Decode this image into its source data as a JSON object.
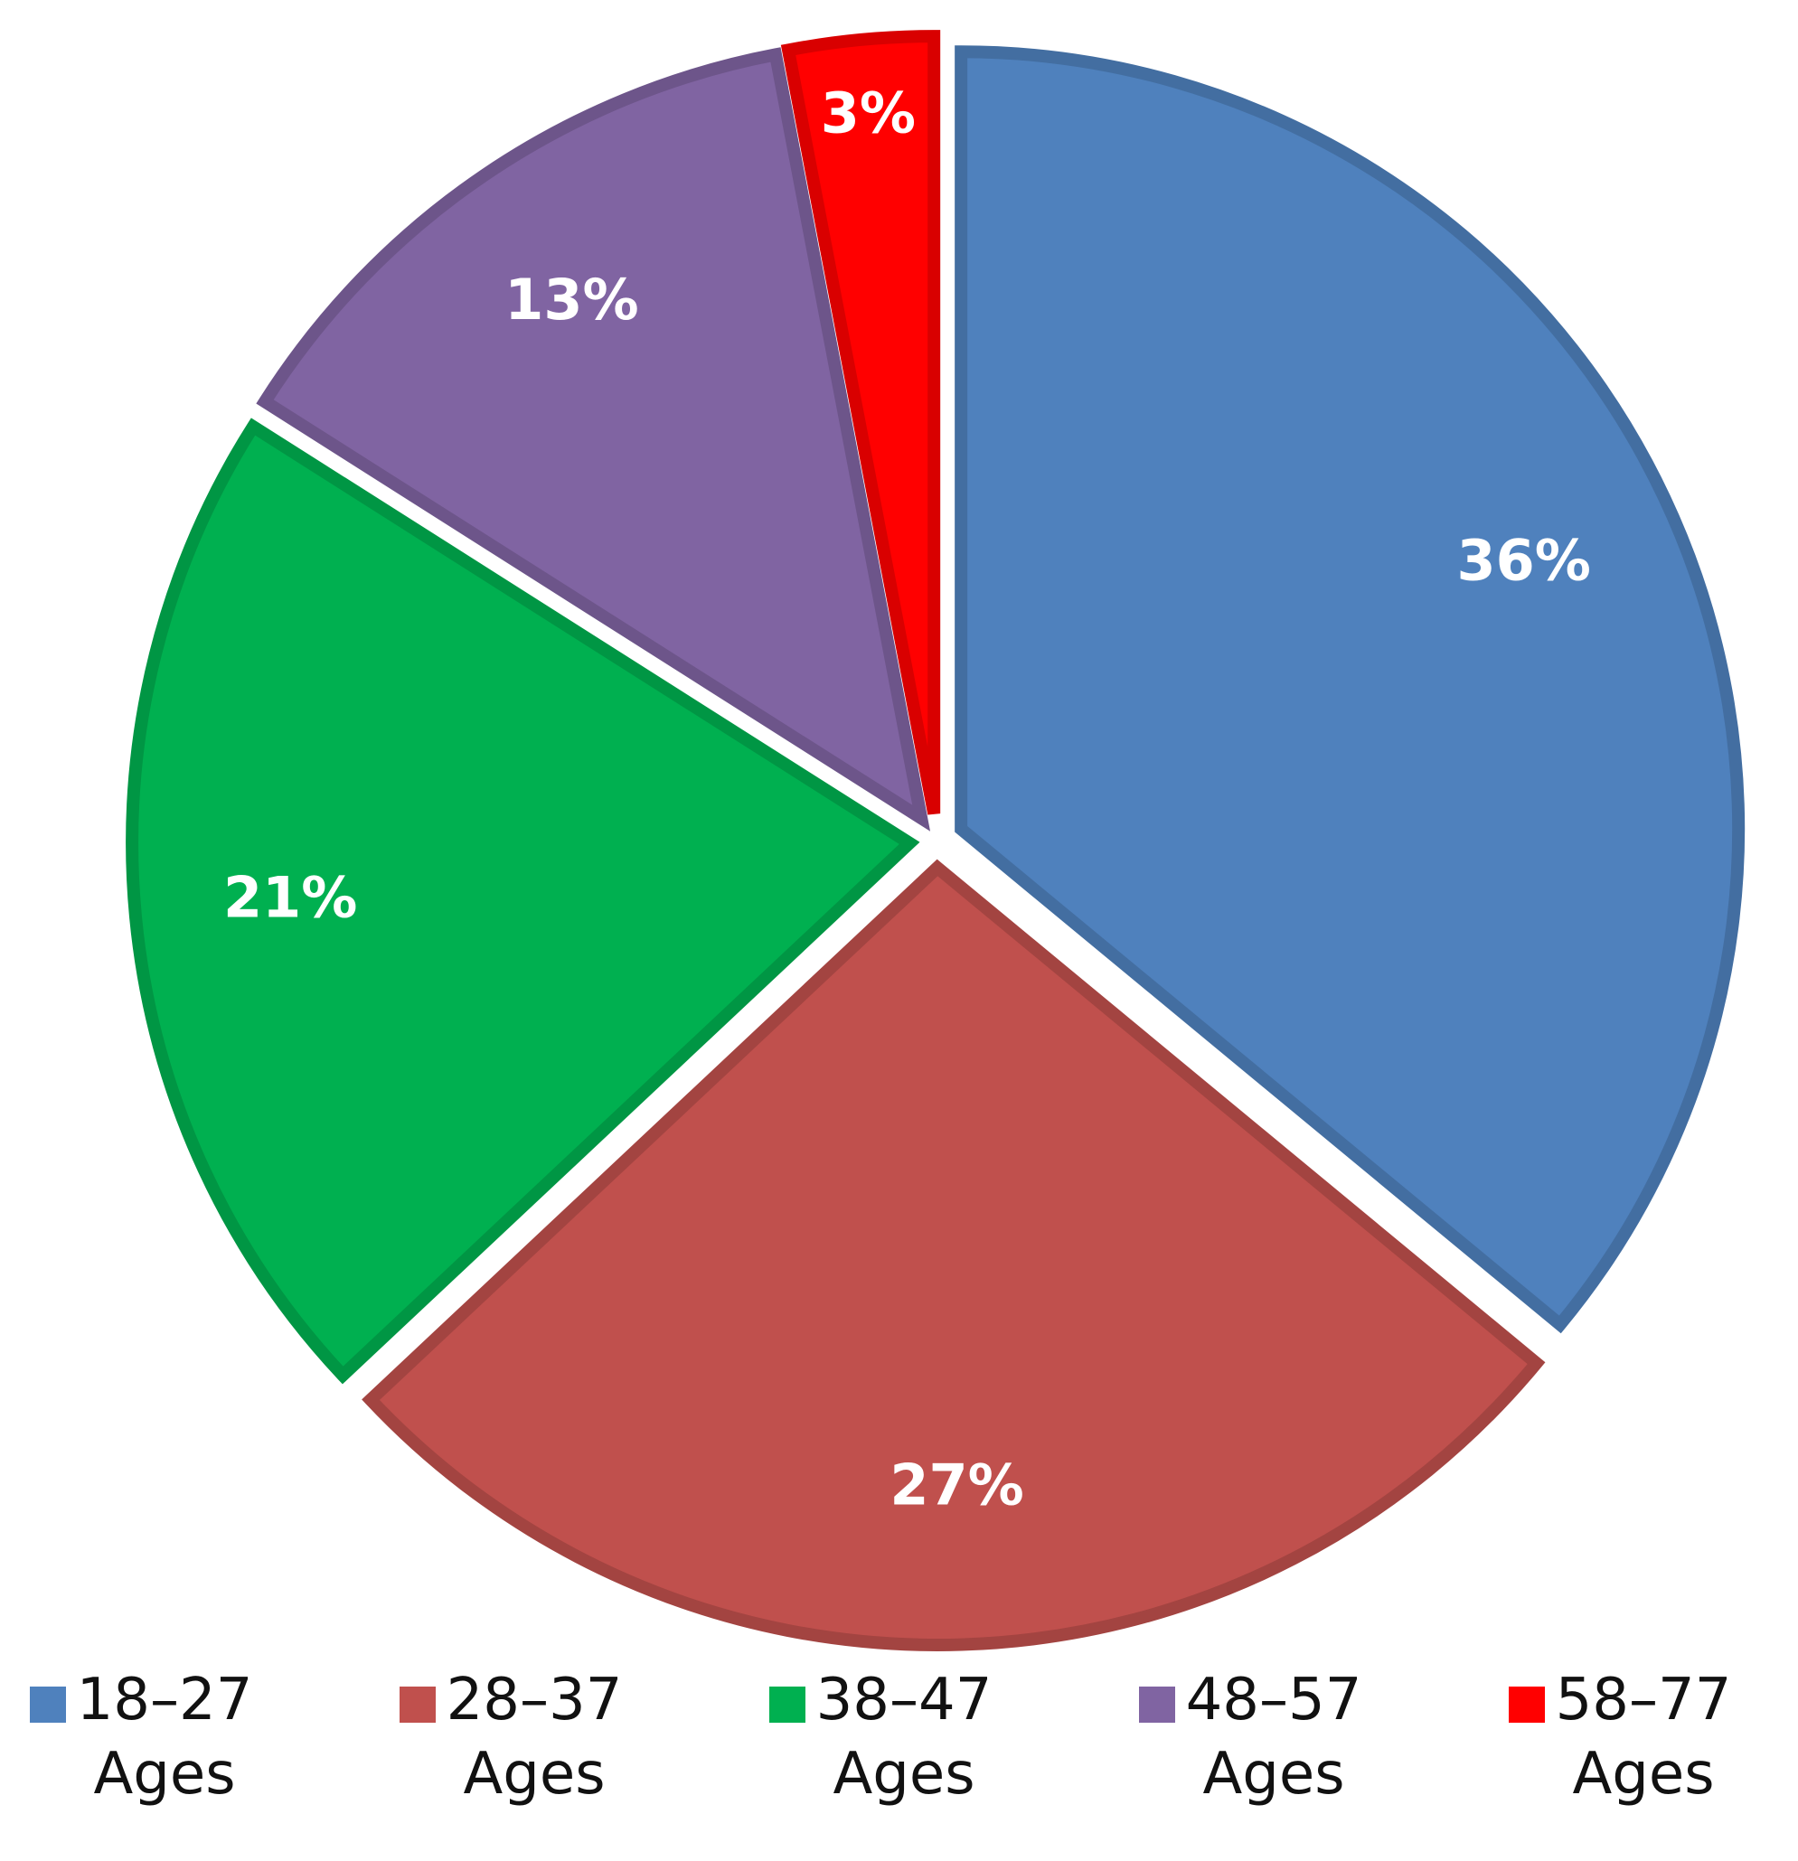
{
  "chart_data": {
    "type": "pie",
    "categories": [
      "18–27 Ages",
      "28–37 Ages",
      "38–47 Ages",
      "48–57 Ages",
      "58–77 Ages"
    ],
    "values": [
      36,
      27,
      21,
      13,
      3
    ],
    "value_labels": [
      "36%",
      "27%",
      "21%",
      "13%",
      "3%"
    ],
    "colors": [
      "#4f81bd",
      "#c0504d",
      "#00b050",
      "#8064a2",
      "#ff0000"
    ],
    "legend": "bottom"
  }
}
